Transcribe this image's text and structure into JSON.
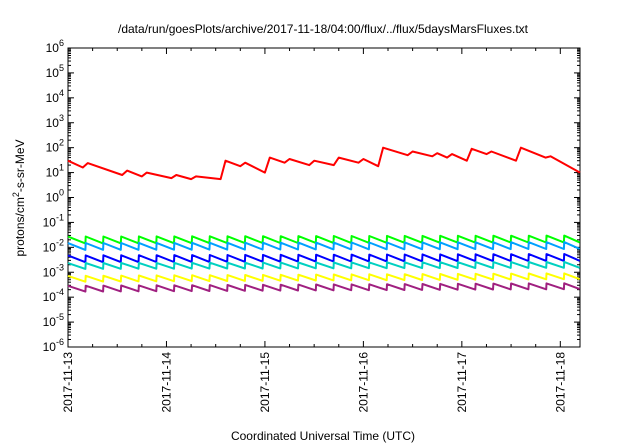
{
  "chart_data": {
    "type": "line",
    "title": "/data/run/goesPlots/archive/2017-11-18/04:00/flux/../flux/5daysMarsFluxes.txt",
    "xlabel": "Coordinated Universal Time (UTC)",
    "ylabel": {
      "pre": "protons/cm",
      "sup": "2",
      "post": "-s-sr-MeV"
    },
    "yscale": "log",
    "ylim_exp": [
      -6,
      6
    ],
    "xlim_days": [
      0,
      5.2
    ],
    "x_ticks": [
      {
        "day": 0,
        "label": "2017-11-13"
      },
      {
        "day": 1,
        "label": "2017-11-14"
      },
      {
        "day": 2,
        "label": "2017-11-15"
      },
      {
        "day": 3,
        "label": "2017-11-16"
      },
      {
        "day": 4,
        "label": "2017-11-17"
      },
      {
        "day": 5,
        "label": "2017-11-18"
      }
    ],
    "x_start_date": "2017-11-13",
    "x_unit": "days",
    "series": [
      {
        "color": "#ff0000",
        "x": [
          0.0,
          0.15,
          0.2,
          0.55,
          0.6,
          0.75,
          0.8,
          1.05,
          1.1,
          1.25,
          1.3,
          1.55,
          1.6,
          1.75,
          1.8,
          2.0,
          2.05,
          2.2,
          2.25,
          2.45,
          2.5,
          2.7,
          2.75,
          2.95,
          3.0,
          3.15,
          3.2,
          3.45,
          3.5,
          3.7,
          3.75,
          3.85,
          3.9,
          4.05,
          4.1,
          4.25,
          4.3,
          4.55,
          4.6,
          4.85,
          4.9,
          5.2
        ],
        "y": [
          30,
          16,
          24,
          8,
          12,
          7,
          10,
          6,
          8,
          5.5,
          7,
          5.5,
          30,
          18,
          25,
          10,
          40,
          25,
          35,
          20,
          30,
          20,
          40,
          25,
          35,
          18,
          100,
          50,
          70,
          45,
          60,
          40,
          55,
          30,
          90,
          55,
          70,
          30,
          100,
          40,
          45,
          10
        ]
      },
      {
        "color": "#00ff00",
        "x": [
          0.0,
          5.2
        ],
        "y": [
          0.02,
          0.022
        ],
        "sawtooth": {
          "period": 0.18,
          "amplitude": 0.7
        }
      },
      {
        "color": "#00a0ff",
        "x": [
          0.0,
          5.2
        ],
        "y": [
          0.011,
          0.012
        ],
        "sawtooth": {
          "period": 0.18,
          "amplitude": 0.7
        }
      },
      {
        "color": "#0000ff",
        "x": [
          0.0,
          5.2
        ],
        "y": [
          0.0035,
          0.004
        ],
        "sawtooth": {
          "period": 0.18,
          "amplitude": 0.7
        }
      },
      {
        "color": "#00d0c0",
        "x": [
          0.0,
          5.2
        ],
        "y": [
          0.0018,
          0.002
        ],
        "sawtooth": {
          "period": 0.18,
          "amplitude": 0.6
        }
      },
      {
        "color": "#ffff00",
        "x": [
          0.0,
          5.2
        ],
        "y": [
          0.00055,
          0.0007
        ],
        "sawtooth": {
          "period": 0.18,
          "amplitude": 0.6
        }
      },
      {
        "color": "#a02080",
        "x": [
          0.0,
          5.2
        ],
        "y": [
          0.00022,
          0.00028
        ],
        "sawtooth": {
          "period": 0.18,
          "amplitude": 0.6
        }
      }
    ],
    "grid": false,
    "legend": "none"
  }
}
